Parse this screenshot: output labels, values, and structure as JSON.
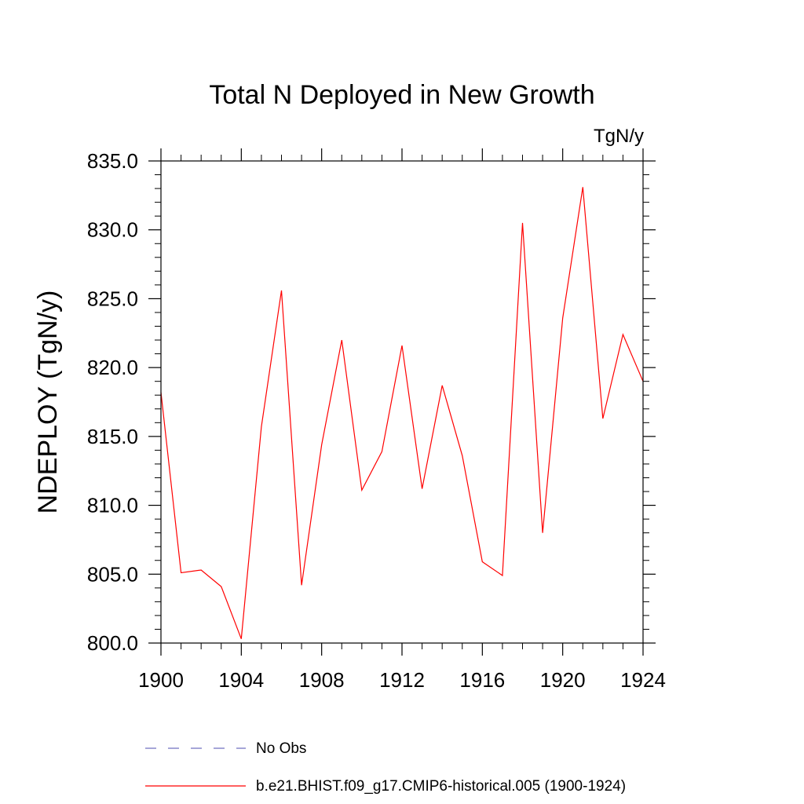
{
  "chart_data": {
    "type": "line",
    "title": "Total N Deployed in New Growth",
    "units": "TgN/y",
    "ylabel": "NDEPLOY  (TgN/y)",
    "xlabel": "",
    "xlim": [
      1900,
      1924
    ],
    "ylim": [
      800,
      835
    ],
    "x_ticks": [
      1900,
      1904,
      1908,
      1912,
      1916,
      1920,
      1924
    ],
    "x_tick_labels": [
      "1900",
      "1904",
      "1908",
      "1912",
      "1916",
      "1920",
      "1924"
    ],
    "y_ticks": [
      800,
      805,
      810,
      815,
      820,
      825,
      830,
      835
    ],
    "y_tick_labels": [
      "800.0",
      "805.0",
      "810.0",
      "815.0",
      "820.0",
      "825.0",
      "830.0",
      "835.0"
    ],
    "grid": false,
    "legend_position": "bottom",
    "legend": [
      {
        "label": "No Obs",
        "color": "#7070c0",
        "style": "dashed"
      },
      {
        "label": "b.e21.BHIST.f09_g17.CMIP6-historical.005 (1900-1924)",
        "color": "#ff0000",
        "style": "solid"
      }
    ],
    "series": [
      {
        "color": "#ff0000",
        "x": [
          1900,
          1901,
          1902,
          1903,
          1904,
          1905,
          1906,
          1907,
          1908,
          1909,
          1910,
          1911,
          1912,
          1913,
          1914,
          1915,
          1916,
          1917,
          1918,
          1919,
          1920,
          1921,
          1922,
          1923,
          1924
        ],
        "y": [
          818.2,
          805.1,
          805.3,
          804.1,
          800.3,
          815.7,
          825.6,
          804.2,
          814.4,
          822.0,
          811.1,
          813.9,
          821.6,
          811.2,
          818.7,
          813.6,
          805.9,
          804.9,
          830.5,
          808.0,
          823.6,
          833.1,
          816.3,
          822.4,
          819.0
        ]
      }
    ]
  }
}
